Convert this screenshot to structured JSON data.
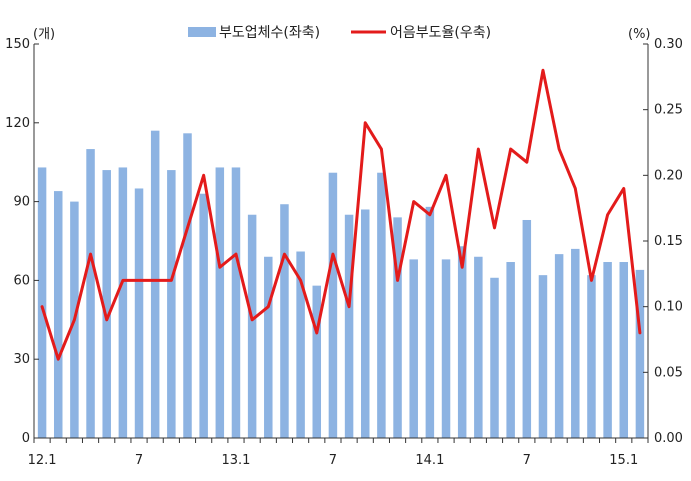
{
  "chart_data": {
    "type": "bar+line",
    "legend_placement": "top-center",
    "grid": false,
    "categories": [
      "12.1",
      "12.2",
      "12.3",
      "12.4",
      "12.5",
      "12.6",
      "12.7",
      "12.8",
      "12.9",
      "12.10",
      "12.11",
      "12.12",
      "13.1",
      "13.2",
      "13.3",
      "13.4",
      "13.5",
      "13.6",
      "13.7",
      "13.8",
      "13.9",
      "13.10",
      "13.11",
      "13.12",
      "14.1",
      "14.2",
      "14.3",
      "14.4",
      "14.5",
      "14.6",
      "14.7",
      "14.8",
      "14.9",
      "14.10",
      "14.11",
      "14.12",
      "15.1",
      "15.2"
    ],
    "x_tick_labels": [
      {
        "index": 0,
        "label": "12.1"
      },
      {
        "index": 6,
        "label": "7"
      },
      {
        "index": 12,
        "label": "13.1"
      },
      {
        "index": 18,
        "label": "7"
      },
      {
        "index": 24,
        "label": "14.1"
      },
      {
        "index": 30,
        "label": "7"
      },
      {
        "index": 36,
        "label": "15.1"
      }
    ],
    "y_left": {
      "unit_label": "(개)",
      "ylim": [
        0,
        150
      ],
      "ticks": [
        0,
        30,
        60,
        90,
        120,
        150
      ]
    },
    "y_right": {
      "unit_label": "(%)",
      "ylim": [
        0,
        0.3
      ],
      "ticks": [
        "0.00",
        "0.05",
        "0.10",
        "0.15",
        "0.20",
        "0.25",
        "0.30"
      ]
    },
    "series": [
      {
        "name": "부도업체수(좌축)",
        "kind": "bar",
        "axis": "left",
        "color": "#8db3e2",
        "values": [
          103,
          94,
          90,
          110,
          102,
          103,
          95,
          117,
          102,
          116,
          93,
          103,
          103,
          85,
          69,
          89,
          71,
          58,
          101,
          85,
          87,
          101,
          84,
          68,
          88,
          68,
          73,
          69,
          61,
          67,
          83,
          62,
          70,
          72,
          62,
          67,
          67,
          64
        ]
      },
      {
        "name": "어음부도율(우축)",
        "kind": "line",
        "axis": "right",
        "color": "#e31b1b",
        "values": [
          0.1,
          0.06,
          0.09,
          0.14,
          0.09,
          0.12,
          0.12,
          0.12,
          0.12,
          0.16,
          0.2,
          0.13,
          0.14,
          0.09,
          0.1,
          0.14,
          0.12,
          0.08,
          0.14,
          0.1,
          0.24,
          0.22,
          0.12,
          0.18,
          0.17,
          0.2,
          0.13,
          0.22,
          0.16,
          0.22,
          0.21,
          0.28,
          0.22,
          0.19,
          0.12,
          0.17,
          0.19,
          0.08
        ]
      }
    ]
  }
}
